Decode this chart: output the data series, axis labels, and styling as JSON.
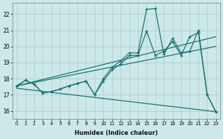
{
  "xlabel": "Humidex (Indice chaleur)",
  "bg_color": "#cce8e8",
  "grid_color": "#aacccc",
  "line_color": "#1a7070",
  "xlim": [
    -0.5,
    23.5
  ],
  "ylim": [
    15.5,
    22.7
  ],
  "xticks": [
    0,
    1,
    2,
    3,
    4,
    5,
    6,
    7,
    8,
    9,
    10,
    11,
    12,
    13,
    14,
    15,
    16,
    17,
    18,
    19,
    20,
    21,
    22,
    23
  ],
  "yticks": [
    16,
    17,
    18,
    19,
    20,
    21,
    22
  ],
  "lines": [
    {
      "x": [
        0,
        1,
        2,
        3,
        4,
        5,
        6,
        7,
        8,
        9,
        10,
        11,
        12,
        13,
        14,
        15,
        16,
        17,
        18,
        19,
        20,
        21,
        22,
        23
      ],
      "y": [
        17.55,
        17.9,
        17.65,
        17.1,
        17.2,
        17.35,
        17.55,
        17.7,
        17.85,
        17.0,
        18.0,
        18.7,
        19.1,
        19.6,
        19.6,
        22.3,
        22.35,
        19.5,
        20.5,
        19.6,
        19.7,
        21.0,
        17.0,
        15.95
      ],
      "marker": true
    },
    {
      "x": [
        0,
        1,
        2,
        3,
        4,
        5,
        6,
        7,
        8,
        9,
        10,
        11,
        12,
        13,
        14,
        15,
        16,
        17,
        18,
        19,
        20,
        21,
        22,
        23
      ],
      "y": [
        17.55,
        17.9,
        17.65,
        17.1,
        17.2,
        17.35,
        17.55,
        17.7,
        17.85,
        17.0,
        17.85,
        18.55,
        18.9,
        19.45,
        19.45,
        20.95,
        19.45,
        19.7,
        20.3,
        19.45,
        20.6,
        20.85,
        17.0,
        15.95
      ],
      "marker": true
    },
    {
      "x": [
        0,
        23
      ],
      "y": [
        17.55,
        20.6
      ],
      "marker": false
    },
    {
      "x": [
        0,
        23
      ],
      "y": [
        17.55,
        20.0
      ],
      "marker": false
    },
    {
      "x": [
        0,
        23
      ],
      "y": [
        17.4,
        15.95
      ],
      "marker": false
    }
  ]
}
